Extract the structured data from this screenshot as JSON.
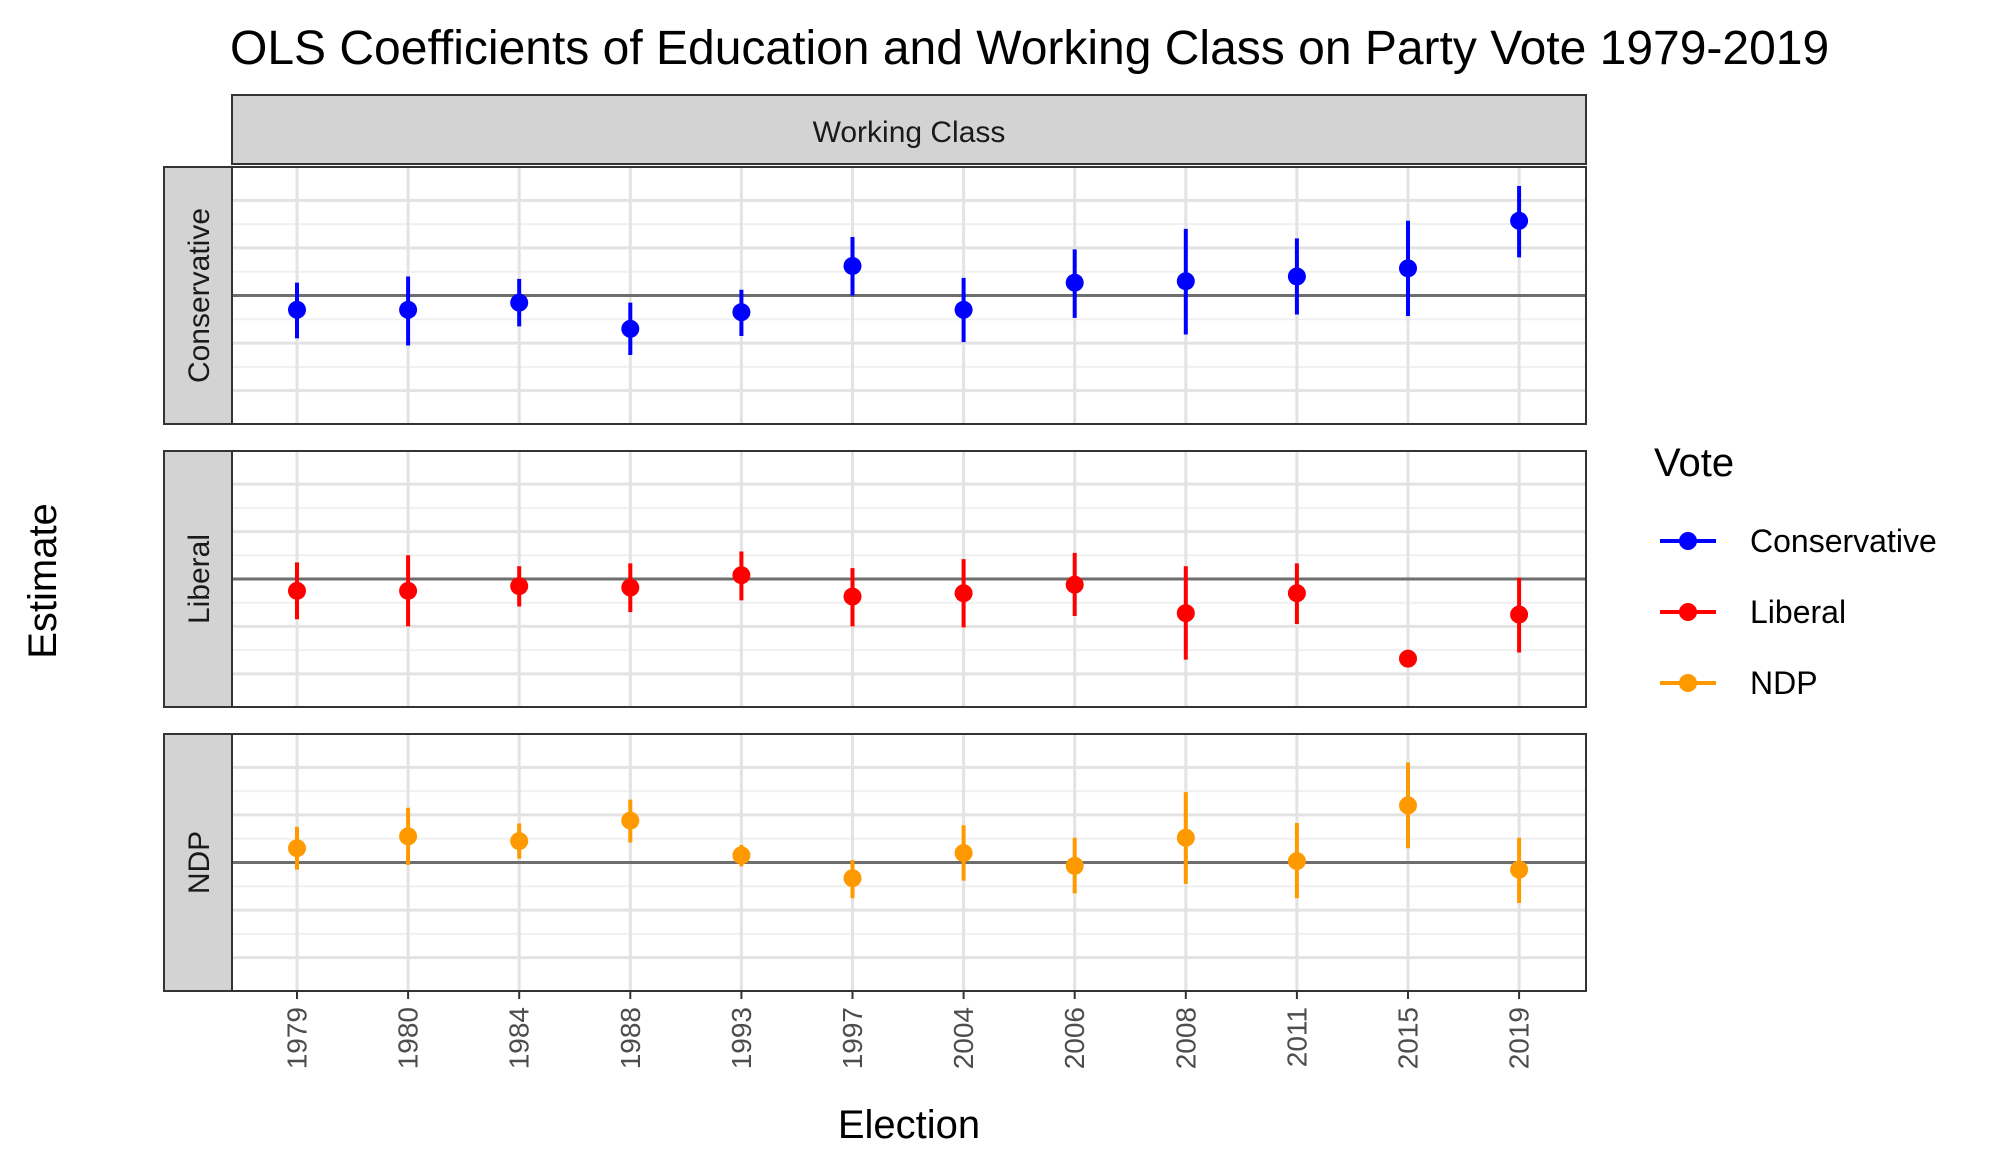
{
  "chart_data": {
    "type": "scatter",
    "title": "OLS Coefficients of Education and Working Class on Party Vote 1979-2019",
    "facet_column": "Working Class",
    "xlabel": "Election",
    "ylabel": "Estimate",
    "ylim": [
      -0.27,
      0.27
    ],
    "y_ticks": [
      "-0.2",
      "-0.1",
      "0.0",
      "0.1",
      "0.2"
    ],
    "y_tick_values": [
      -0.2,
      -0.1,
      0.0,
      0.1,
      0.2
    ],
    "categories": [
      "1979",
      "1980",
      "1984",
      "1988",
      "1993",
      "1997",
      "2004",
      "2006",
      "2008",
      "2011",
      "2015",
      "2019"
    ],
    "reference_line": 0,
    "grid": true,
    "legend": {
      "title": "Vote",
      "position": "right"
    },
    "series": [
      {
        "name": "Conservative",
        "color": "#0000ff",
        "values": [
          -0.03,
          -0.03,
          -0.015,
          -0.07,
          -0.035,
          0.062,
          -0.03,
          0.027,
          0.03,
          0.04,
          0.057,
          0.157
        ],
        "lower": [
          -0.09,
          -0.105,
          -0.065,
          -0.125,
          -0.085,
          0.0,
          -0.098,
          -0.047,
          -0.082,
          -0.04,
          -0.043,
          0.08
        ],
        "upper": [
          0.027,
          0.04,
          0.035,
          -0.015,
          0.012,
          0.123,
          0.037,
          0.097,
          0.14,
          0.12,
          0.157,
          0.23
        ]
      },
      {
        "name": "Liberal",
        "color": "#ff0000",
        "values": [
          -0.025,
          -0.025,
          -0.015,
          -0.018,
          0.008,
          -0.037,
          -0.03,
          -0.012,
          -0.072,
          -0.03,
          -0.168,
          -0.075
        ],
        "lower": [
          -0.085,
          -0.1,
          -0.058,
          -0.07,
          -0.045,
          -0.1,
          -0.102,
          -0.078,
          -0.17,
          -0.095,
          -0.168,
          -0.155
        ],
        "upper": [
          0.035,
          0.05,
          0.027,
          0.033,
          0.058,
          0.023,
          0.042,
          0.055,
          0.027,
          0.033,
          -0.168,
          0.003
        ]
      },
      {
        "name": "NDP",
        "color": "#ff9900",
        "values": [
          0.03,
          0.055,
          0.045,
          0.088,
          0.015,
          -0.033,
          0.02,
          -0.007,
          0.052,
          0.003,
          0.12,
          -0.015
        ],
        "lower": [
          -0.015,
          -0.005,
          0.008,
          0.042,
          -0.008,
          -0.075,
          -0.038,
          -0.065,
          -0.045,
          -0.075,
          0.03,
          -0.085
        ],
        "upper": [
          0.075,
          0.115,
          0.082,
          0.132,
          0.037,
          0.005,
          0.078,
          0.052,
          0.148,
          0.083,
          0.21,
          0.052
        ]
      }
    ]
  }
}
